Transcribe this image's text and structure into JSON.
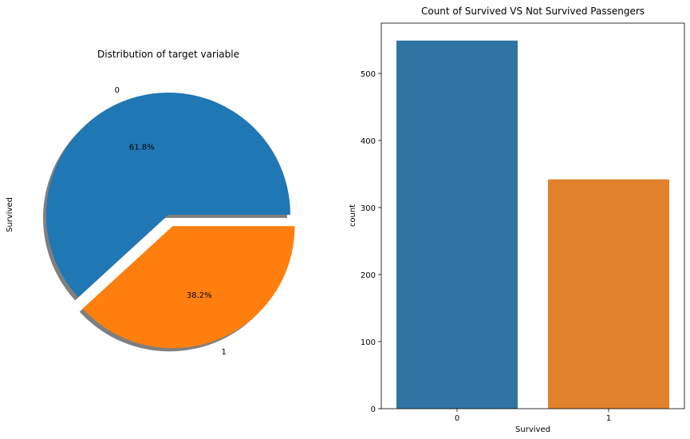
{
  "chart_data": [
    {
      "type": "pie",
      "title": "Distribution of target variable",
      "ylabel": "Survived",
      "slices": [
        {
          "label": "0",
          "value": 61.8,
          "pct_label": "61.8%",
          "color": "#1f77b4",
          "explode": 0
        },
        {
          "label": "1",
          "value": 38.2,
          "pct_label": "38.2%",
          "color": "#ff7f0e",
          "explode": 0.1
        }
      ],
      "shadow": true
    },
    {
      "type": "bar",
      "title": "Count of Survived VS Not Survived Passengers",
      "xlabel": "Survived",
      "ylabel": "count",
      "categories": [
        "0",
        "1"
      ],
      "values": [
        549,
        342
      ],
      "colors": [
        "#3274a1",
        "#e1812c"
      ],
      "ylim": [
        0,
        575
      ],
      "yticks": [
        0,
        100,
        200,
        300,
        400,
        500
      ],
      "grid": false
    }
  ]
}
